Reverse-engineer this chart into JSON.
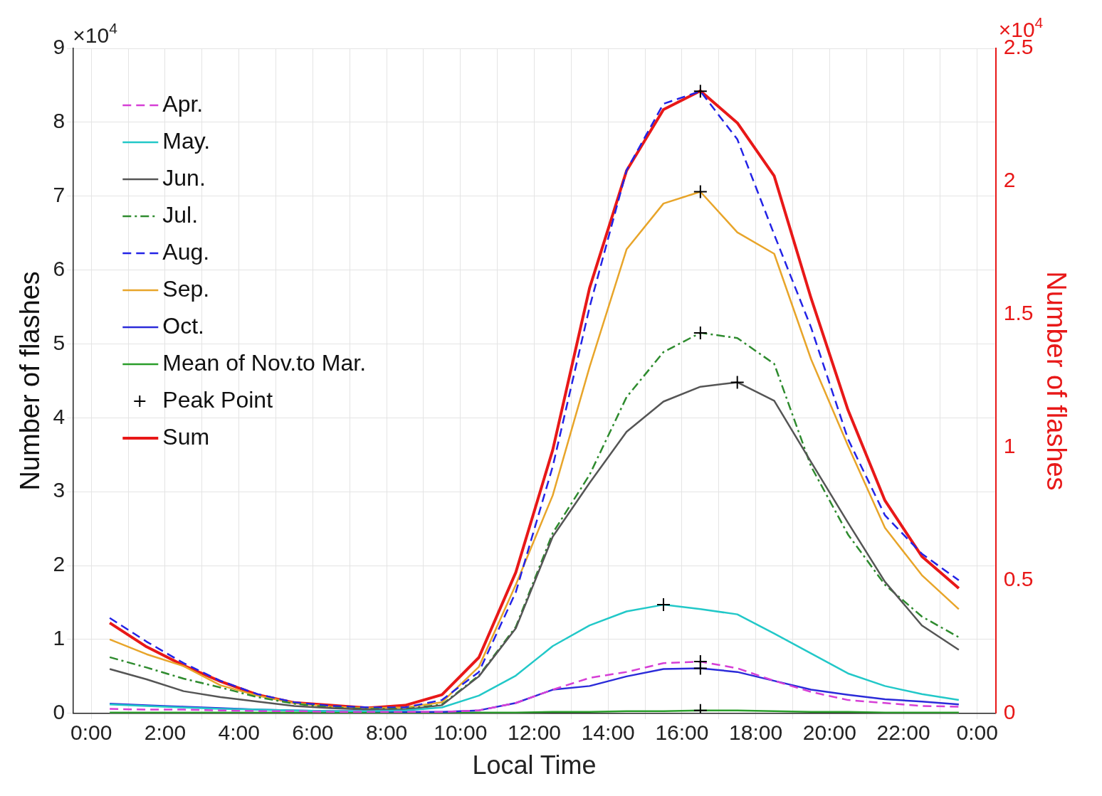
{
  "chart_data": {
    "type": "line",
    "xlabel": "Local Time",
    "ylabel": "Number of flashes",
    "y2label": "Number of flashes",
    "x": [
      0.5,
      1.5,
      2.5,
      3.5,
      4.5,
      5.5,
      6.5,
      7.5,
      8.5,
      9.5,
      10.5,
      11.5,
      12.5,
      13.5,
      14.5,
      15.5,
      16.5,
      17.5,
      18.5,
      19.5,
      20.5,
      21.5,
      22.5,
      23.5
    ],
    "xlim": [
      -0.5,
      24.5
    ],
    "xticks": [
      {
        "value": 0,
        "label": "0:00"
      },
      {
        "value": 1,
        "label": null
      },
      {
        "value": 2,
        "label": "2:00"
      },
      {
        "value": 3,
        "label": null
      },
      {
        "value": 4,
        "label": "4:00"
      },
      {
        "value": 5,
        "label": null
      },
      {
        "value": 6,
        "label": "6:00"
      },
      {
        "value": 7,
        "label": null
      },
      {
        "value": 8,
        "label": "8:00"
      },
      {
        "value": 9,
        "label": null
      },
      {
        "value": 10,
        "label": "10:00"
      },
      {
        "value": 11,
        "label": null
      },
      {
        "value": 12,
        "label": "12:00"
      },
      {
        "value": 13,
        "label": null
      },
      {
        "value": 14,
        "label": "14:00"
      },
      {
        "value": 15,
        "label": null
      },
      {
        "value": 16,
        "label": "16:00"
      },
      {
        "value": 17,
        "label": null
      },
      {
        "value": 18,
        "label": "18:00"
      },
      {
        "value": 19,
        "label": null
      },
      {
        "value": 20,
        "label": "20:00"
      },
      {
        "value": 21,
        "label": null
      },
      {
        "value": 22,
        "label": "22:00"
      },
      {
        "value": 23,
        "label": null
      },
      {
        "value": 24,
        "label": "0:00"
      }
    ],
    "ylim": [
      0,
      9
    ],
    "yticks": [
      0,
      1,
      2,
      3,
      4,
      5,
      6,
      7,
      8,
      9
    ],
    "y2lim": [
      0,
      2.5
    ],
    "y2ticks": [
      0,
      0.5,
      1,
      1.5,
      2,
      2.5
    ],
    "grid": true,
    "legend": "top left",
    "marker": "none",
    "line_style": "solid",
    "annotations": [
      "×10$^{4}$",
      "×10$^{4}$"
    ],
    "series": [
      {
        "name": "Apr.",
        "color": "#d63fd6",
        "line_style": "dashed",
        "values": [
          0.06,
          0.05,
          0.05,
          0.04,
          0.03,
          0.03,
          0.02,
          0.02,
          0.02,
          0.02,
          0.04,
          0.14,
          0.32,
          0.48,
          0.56,
          0.68,
          0.7,
          0.61,
          0.44,
          0.29,
          0.18,
          0.14,
          0.1,
          0.09
        ]
      },
      {
        "name": "May.",
        "color": "#22c8c8",
        "values": [
          0.12,
          0.1,
          0.08,
          0.06,
          0.05,
          0.04,
          0.03,
          0.03,
          0.04,
          0.08,
          0.24,
          0.51,
          0.91,
          1.19,
          1.38,
          1.47,
          1.41,
          1.34,
          1.08,
          0.81,
          0.54,
          0.37,
          0.26,
          0.18
        ]
      },
      {
        "name": "Jun.",
        "color": "#555555",
        "values": [
          0.6,
          0.46,
          0.3,
          0.22,
          0.16,
          0.1,
          0.07,
          0.05,
          0.05,
          0.11,
          0.5,
          1.15,
          2.39,
          3.12,
          3.81,
          4.22,
          4.42,
          4.48,
          4.23,
          3.4,
          2.58,
          1.78,
          1.19,
          0.86
        ]
      },
      {
        "name": "Jul.",
        "color": "#2e8b2e",
        "line_style": "dashdot",
        "values": [
          0.76,
          0.62,
          0.47,
          0.35,
          0.22,
          0.13,
          0.08,
          0.06,
          0.06,
          0.12,
          0.51,
          1.17,
          2.44,
          3.23,
          4.28,
          4.89,
          5.15,
          5.08,
          4.73,
          3.34,
          2.42,
          1.74,
          1.31,
          1.03
        ]
      },
      {
        "name": "Aug.",
        "color": "#2323e6",
        "line_style": "dashed",
        "values": [
          1.29,
          0.97,
          0.68,
          0.44,
          0.26,
          0.15,
          0.1,
          0.08,
          0.08,
          0.18,
          0.56,
          1.64,
          3.34,
          5.5,
          7.35,
          8.25,
          8.42,
          7.77,
          6.48,
          5.22,
          3.71,
          2.68,
          2.16,
          1.8
        ]
      },
      {
        "name": "Sep.",
        "color": "#e8a52a",
        "values": [
          1.0,
          0.8,
          0.64,
          0.38,
          0.24,
          0.14,
          0.09,
          0.07,
          0.08,
          0.15,
          0.63,
          1.74,
          2.95,
          4.69,
          6.28,
          6.9,
          7.06,
          6.51,
          6.22,
          4.79,
          3.62,
          2.51,
          1.87,
          1.41
        ]
      },
      {
        "name": "Oct.",
        "color": "#2b2bd9",
        "values": [
          0.13,
          0.11,
          0.09,
          0.07,
          0.05,
          0.04,
          0.03,
          0.03,
          0.02,
          0.02,
          0.04,
          0.14,
          0.32,
          0.37,
          0.5,
          0.6,
          0.61,
          0.56,
          0.44,
          0.32,
          0.25,
          0.19,
          0.16,
          0.12
        ]
      },
      {
        "name": "Mean of Nov.to Mar.",
        "color": "#2a9d2a",
        "values": [
          0.01,
          0.01,
          0.01,
          0.01,
          0.01,
          0.01,
          0.01,
          0.01,
          0.01,
          0.01,
          0.01,
          0.01,
          0.02,
          0.02,
          0.03,
          0.03,
          0.04,
          0.04,
          0.03,
          0.02,
          0.02,
          0.01,
          0.01,
          0.01
        ]
      },
      {
        "name": "Peak Point",
        "type": "scatter",
        "color": "#000000",
        "marker": "cross",
        "x": [
          16.5,
          15.5,
          17.5,
          16.5,
          16.5,
          16.5,
          16.5,
          16.5
        ],
        "values": [
          0.7,
          1.47,
          4.48,
          5.15,
          8.42,
          7.06,
          0.61,
          0.04
        ]
      },
      {
        "name": "Sum",
        "color": "#e81818",
        "axis": "y2",
        "values": [
          0.34,
          0.25,
          0.18,
          0.12,
          0.07,
          0.04,
          0.03,
          0.02,
          0.03,
          0.07,
          0.21,
          0.53,
          0.99,
          1.6,
          2.04,
          2.27,
          2.34,
          2.22,
          2.02,
          1.56,
          1.14,
          0.8,
          0.59,
          0.47
        ]
      }
    ]
  }
}
